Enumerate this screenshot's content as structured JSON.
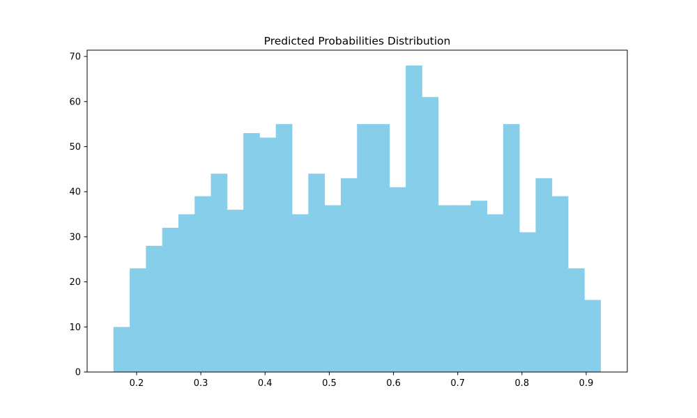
{
  "chart_data": {
    "type": "bar",
    "title": "Predicted Probabilities Distribution",
    "xlabel": "",
    "ylabel": "",
    "bar_color": "#87ceeb",
    "bin_start": 0.164,
    "bin_width": 0.02528,
    "values": [
      10,
      23,
      28,
      32,
      35,
      39,
      44,
      36,
      53,
      52,
      55,
      35,
      44,
      37,
      43,
      55,
      55,
      41,
      68,
      61,
      37,
      37,
      38,
      35,
      55,
      31,
      43,
      39,
      23,
      16
    ],
    "xlim": [
      0.123,
      0.964
    ],
    "ylim": [
      0,
      71.4
    ],
    "x_ticks": [
      0.2,
      0.3,
      0.4,
      0.5,
      0.6,
      0.7,
      0.8,
      0.9
    ],
    "x_tick_labels": [
      "0.2",
      "0.3",
      "0.4",
      "0.5",
      "0.6",
      "0.7",
      "0.8",
      "0.9"
    ],
    "y_ticks": [
      0,
      10,
      20,
      30,
      40,
      50,
      60,
      70
    ],
    "y_tick_labels": [
      "0",
      "10",
      "20",
      "30",
      "40",
      "50",
      "60",
      "70"
    ],
    "grid": false,
    "legend": "none"
  }
}
